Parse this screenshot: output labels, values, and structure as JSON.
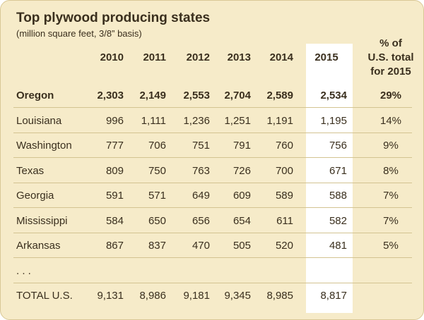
{
  "title": "Top plywood producing states",
  "subtitle": "(million square feet, 3/8” basis)",
  "header": {
    "years": [
      "2010",
      "2011",
      "2012",
      "2013",
      "2014",
      "2015"
    ],
    "pct_lines": [
      "% of",
      "U.S. total",
      "for 2015"
    ]
  },
  "chart_data": {
    "type": "table",
    "title": "Top plywood producing states",
    "subtitle": "(million square feet, 3/8” basis)",
    "columns": [
      "2010",
      "2011",
      "2012",
      "2013",
      "2014",
      "2015",
      "% of U.S. total for 2015"
    ],
    "highlight_column": "2015",
    "rows": [
      {
        "state": "Oregon",
        "values": [
          "2,303",
          "2,149",
          "2,553",
          "2,704",
          "2,589",
          "2,534"
        ],
        "pct": "29%",
        "bold": true
      },
      {
        "state": "Louisiana",
        "values": [
          "996",
          "1,111",
          "1,236",
          "1,251",
          "1,191",
          "1,195"
        ],
        "pct": "14%"
      },
      {
        "state": "Washington",
        "values": [
          "777",
          "706",
          "751",
          "791",
          "760",
          "756"
        ],
        "pct": "9%"
      },
      {
        "state": "Texas",
        "values": [
          "809",
          "750",
          "763",
          "726",
          "700",
          "671"
        ],
        "pct": "8%"
      },
      {
        "state": "Georgia",
        "values": [
          "591",
          "571",
          "649",
          "609",
          "589",
          "588"
        ],
        "pct": "7%"
      },
      {
        "state": "Mississippi",
        "values": [
          "584",
          "650",
          "656",
          "654",
          "611",
          "582"
        ],
        "pct": "7%"
      },
      {
        "state": "Arkansas",
        "values": [
          "867",
          "837",
          "470",
          "505",
          "520",
          "481"
        ],
        "pct": "5%"
      },
      {
        "state": ". . .",
        "values": [
          "",
          "",
          "",
          "",
          "",
          ""
        ],
        "pct": ""
      },
      {
        "state": "TOTAL U.S.",
        "values": [
          "9,131",
          "8,986",
          "9,181",
          "9,345",
          "8,985",
          "8,817"
        ],
        "pct": ""
      }
    ]
  },
  "colors": {
    "background": "#f6ebc9",
    "highlight": "#ffffff",
    "rule": "#d3c391",
    "text": "#3a2f1e"
  }
}
